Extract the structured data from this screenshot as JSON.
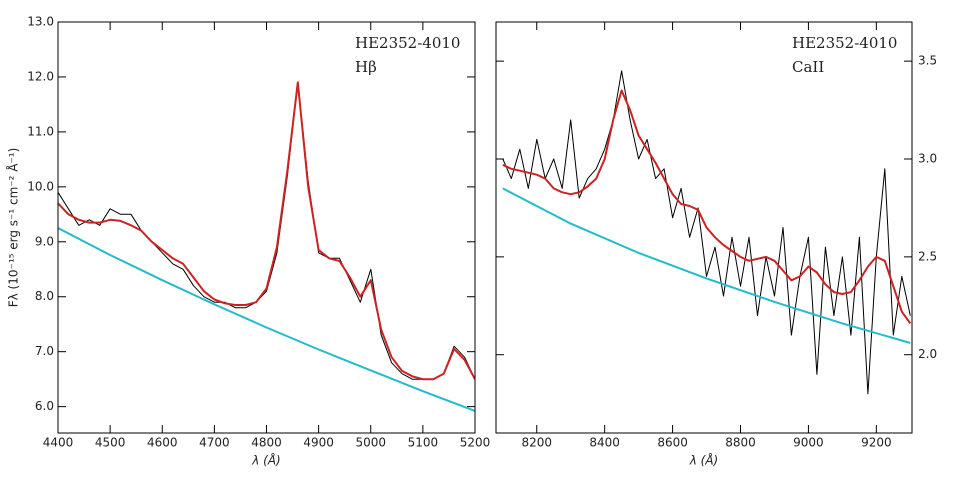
{
  "chart_data": [
    {
      "type": "line",
      "annotations": [
        "HE2352-4010",
        "Hβ"
      ],
      "xlabel": "λ (Å)",
      "ylabel": "Fλ (10⁻¹⁵ erg s⁻¹ cm⁻² Å⁻¹)",
      "xlim": [
        4400,
        5200
      ],
      "ylim": [
        5.52,
        13.0
      ],
      "xticks": [
        4400,
        4500,
        4600,
        4700,
        4800,
        4900,
        5000,
        5100,
        5200
      ],
      "yticks": [
        {
          "value": 6,
          "label": "6.0"
        },
        {
          "value": 7,
          "label": "7.0"
        },
        {
          "value": 8,
          "label": "8.0"
        },
        {
          "value": 9,
          "label": "9.0"
        },
        {
          "value": 10,
          "label": "10.0"
        },
        {
          "value": 11,
          "label": "11.0"
        },
        {
          "value": 12,
          "label": "12.0"
        },
        {
          "value": 13,
          "label": "13.0"
        }
      ],
      "y_axis_side": "left",
      "x": [
        4400,
        4420,
        4440,
        4460,
        4480,
        4500,
        4520,
        4540,
        4560,
        4580,
        4600,
        4620,
        4640,
        4660,
        4680,
        4700,
        4720,
        4740,
        4760,
        4780,
        4800,
        4820,
        4840,
        4860,
        4880,
        4900,
        4920,
        4940,
        4960,
        4980,
        5000,
        5020,
        5040,
        5060,
        5080,
        5100,
        5120,
        5140,
        5160,
        5180,
        5200
      ],
      "series": [
        {
          "color": "#000000",
          "values": [
            9.9,
            9.6,
            9.3,
            9.4,
            9.3,
            9.6,
            9.5,
            9.5,
            9.2,
            9.0,
            8.8,
            8.6,
            8.5,
            8.2,
            8.0,
            7.9,
            7.9,
            7.8,
            7.8,
            7.9,
            8.1,
            8.8,
            10.2,
            11.9,
            10.1,
            8.8,
            8.7,
            8.7,
            8.3,
            7.9,
            8.5,
            7.3,
            6.8,
            6.6,
            6.5,
            6.5,
            6.5,
            6.6,
            7.1,
            6.9,
            6.5
          ]
        },
        {
          "color": "#cc2222",
          "values": [
            9.7,
            9.5,
            9.4,
            9.35,
            9.35,
            9.4,
            9.38,
            9.3,
            9.2,
            9.0,
            8.85,
            8.7,
            8.6,
            8.35,
            8.1,
            7.95,
            7.88,
            7.85,
            7.85,
            7.9,
            8.15,
            8.9,
            10.3,
            11.9,
            10.0,
            8.85,
            8.7,
            8.65,
            8.35,
            8.0,
            8.3,
            7.4,
            6.9,
            6.65,
            6.55,
            6.5,
            6.5,
            6.6,
            7.05,
            6.85,
            6.5
          ]
        },
        {
          "color": "#22bbcc",
          "x": [
            4400,
            4500,
            4600,
            4700,
            4800,
            4900,
            5000,
            5100,
            5200
          ],
          "values": [
            9.25,
            8.76,
            8.3,
            7.86,
            7.44,
            7.04,
            6.66,
            6.28,
            5.92
          ]
        }
      ]
    },
    {
      "type": "line",
      "annotations": [
        "HE2352-4010",
        "CaII"
      ],
      "xlabel": "λ (Å)",
      "xlim": [
        8080,
        9305
      ],
      "ylim": [
        1.6,
        3.7
      ],
      "xticks": [
        8200,
        8400,
        8600,
        8800,
        9000,
        9200
      ],
      "yticks": [
        {
          "value": 2,
          "label": "2.0"
        },
        2.5,
        {
          "value": 3,
          "label": "3.0"
        },
        3.5
      ],
      "y_axis_side": "right",
      "x": [
        8100,
        8125,
        8150,
        8175,
        8200,
        8225,
        8250,
        8275,
        8300,
        8325,
        8350,
        8375,
        8400,
        8425,
        8450,
        8475,
        8500,
        8525,
        8550,
        8575,
        8600,
        8625,
        8650,
        8675,
        8700,
        8725,
        8750,
        8775,
        8800,
        8825,
        8850,
        8875,
        8900,
        8925,
        8950,
        8975,
        9000,
        9025,
        9050,
        9075,
        9100,
        9125,
        9150,
        9175,
        9200,
        9225,
        9250,
        9275,
        9300
      ],
      "series": [
        {
          "color": "#000000",
          "values": [
            3.0,
            2.9,
            3.05,
            2.85,
            3.1,
            2.9,
            3.0,
            2.85,
            3.2,
            2.8,
            2.9,
            2.95,
            3.05,
            3.2,
            3.45,
            3.2,
            3.0,
            3.1,
            2.9,
            2.95,
            2.7,
            2.85,
            2.6,
            2.75,
            2.4,
            2.55,
            2.3,
            2.6,
            2.35,
            2.6,
            2.2,
            2.5,
            2.3,
            2.65,
            2.1,
            2.4,
            2.6,
            1.9,
            2.55,
            2.2,
            2.5,
            2.1,
            2.6,
            1.8,
            2.5,
            2.95,
            2.1,
            2.4,
            2.2
          ]
        },
        {
          "color": "#cc2222",
          "values": [
            2.97,
            2.95,
            2.94,
            2.93,
            2.92,
            2.9,
            2.85,
            2.83,
            2.82,
            2.83,
            2.86,
            2.9,
            3.0,
            3.2,
            3.35,
            3.25,
            3.12,
            3.05,
            2.98,
            2.9,
            2.82,
            2.77,
            2.76,
            2.74,
            2.65,
            2.6,
            2.56,
            2.53,
            2.5,
            2.48,
            2.49,
            2.5,
            2.48,
            2.43,
            2.38,
            2.4,
            2.45,
            2.42,
            2.36,
            2.32,
            2.31,
            2.32,
            2.38,
            2.45,
            2.5,
            2.48,
            2.35,
            2.22,
            2.16
          ]
        },
        {
          "color": "#22bbcc",
          "x": [
            8100,
            8300,
            8500,
            8700,
            8900,
            9100,
            9300
          ],
          "values": [
            2.85,
            2.67,
            2.52,
            2.39,
            2.27,
            2.16,
            2.06
          ]
        }
      ]
    }
  ]
}
